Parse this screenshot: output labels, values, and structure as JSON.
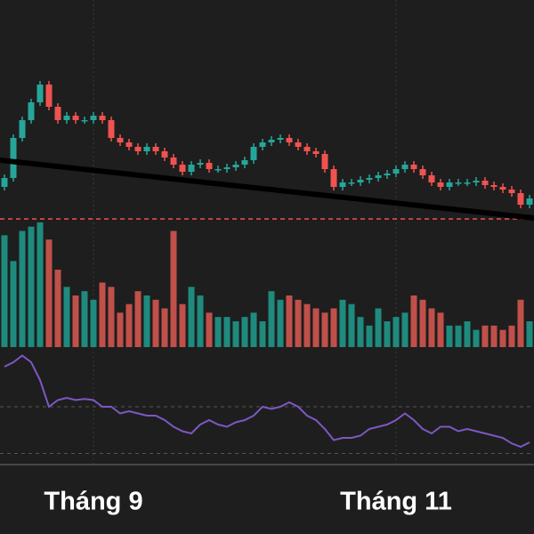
{
  "chart_data": {
    "type": "candlestick",
    "categories": [
      null,
      null,
      null,
      null,
      null,
      null,
      null,
      null,
      null,
      null,
      "Tháng 9",
      null,
      null,
      null,
      null,
      null,
      null,
      null,
      null,
      null,
      null,
      null,
      null,
      null,
      null,
      null,
      null,
      null,
      null,
      null,
      null,
      null,
      null,
      null,
      null,
      null,
      null,
      null,
      null,
      null,
      null,
      null,
      null,
      null,
      "Tháng 11",
      null,
      null,
      null,
      null,
      null,
      null,
      null,
      null,
      null,
      null,
      null,
      null,
      null,
      null,
      null
    ],
    "open": [
      40,
      50,
      95,
      115,
      135,
      155,
      130,
      115,
      120,
      115,
      115,
      120,
      115,
      95,
      90,
      85,
      80,
      85,
      80,
      73,
      65,
      57,
      65,
      67,
      60,
      60,
      62,
      65,
      70,
      85,
      90,
      93,
      95,
      90,
      85,
      80,
      77,
      60,
      40,
      45,
      45,
      48,
      50,
      53,
      55,
      60,
      65,
      60,
      53,
      45,
      40,
      45,
      45,
      45,
      47,
      42,
      40,
      37,
      33,
      20
    ],
    "high": [
      54,
      99,
      119,
      139,
      159,
      159,
      134,
      124,
      124,
      119,
      124,
      124,
      119,
      99,
      94,
      89,
      89,
      89,
      84,
      77,
      69,
      69,
      71,
      71,
      64,
      66,
      69,
      74,
      89,
      94,
      97,
      99,
      99,
      94,
      89,
      84,
      81,
      64,
      49,
      49,
      52,
      54,
      57,
      59,
      64,
      69,
      69,
      64,
      57,
      49,
      49,
      49,
      49,
      51,
      51,
      46,
      44,
      41,
      37,
      31
    ],
    "low": [
      36,
      46,
      91,
      111,
      131,
      126,
      111,
      111,
      111,
      111,
      111,
      111,
      91,
      86,
      81,
      76,
      76,
      76,
      69,
      61,
      53,
      53,
      61,
      56,
      56,
      56,
      58,
      61,
      66,
      81,
      86,
      89,
      86,
      81,
      76,
      73,
      56,
      36,
      36,
      41,
      41,
      44,
      46,
      49,
      51,
      56,
      56,
      49,
      41,
      36,
      36,
      41,
      41,
      41,
      38,
      36,
      33,
      29,
      16,
      16
    ],
    "close": [
      50,
      95,
      115,
      135,
      155,
      130,
      115,
      120,
      115,
      115,
      120,
      115,
      95,
      90,
      85,
      80,
      85,
      80,
      73,
      65,
      57,
      65,
      67,
      60,
      60,
      62,
      65,
      70,
      85,
      90,
      93,
      95,
      90,
      85,
      80,
      77,
      60,
      40,
      45,
      45,
      48,
      50,
      53,
      55,
      60,
      65,
      60,
      53,
      45,
      40,
      45,
      45,
      45,
      47,
      42,
      40,
      37,
      33,
      20,
      27
    ],
    "ylim": [
      0,
      250
    ],
    "up_color": "#26a69a",
    "down_color": "#ef5350",
    "trendline": [
      70,
      5
    ],
    "trendline_color": "#000000",
    "reference_line": 4,
    "reference_color": "#ef5350",
    "volume": {
      "values": [
        130,
        100,
        135,
        140,
        145,
        125,
        90,
        70,
        60,
        65,
        55,
        75,
        70,
        40,
        50,
        65,
        60,
        55,
        45,
        135,
        50,
        70,
        60,
        40,
        35,
        35,
        30,
        35,
        40,
        30,
        65,
        55,
        60,
        55,
        50,
        45,
        40,
        45,
        55,
        50,
        35,
        25,
        45,
        30,
        35,
        40,
        60,
        55,
        45,
        40,
        25,
        25,
        30,
        20,
        25,
        25,
        20,
        25,
        55,
        30
      ],
      "ylim": [
        0,
        150
      ],
      "up_color": "#1f8a7e",
      "down_color": "#c0504a"
    },
    "rsi": {
      "values": [
        88,
        92,
        98,
        92,
        76,
        52,
        58,
        60,
        58,
        59,
        58,
        52,
        52,
        46,
        48,
        46,
        44,
        44,
        40,
        34,
        30,
        28,
        36,
        40,
        36,
        34,
        38,
        40,
        44,
        52,
        50,
        52,
        56,
        52,
        44,
        40,
        32,
        22,
        24,
        24,
        26,
        32,
        34,
        36,
        40,
        46,
        40,
        32,
        28,
        34,
        34,
        30,
        32,
        30,
        28,
        26,
        24,
        19,
        16,
        20
      ],
      "ylim": [
        0,
        100
      ],
      "levels": [
        52,
        10
      ],
      "color": "#7e57c2"
    }
  }
}
